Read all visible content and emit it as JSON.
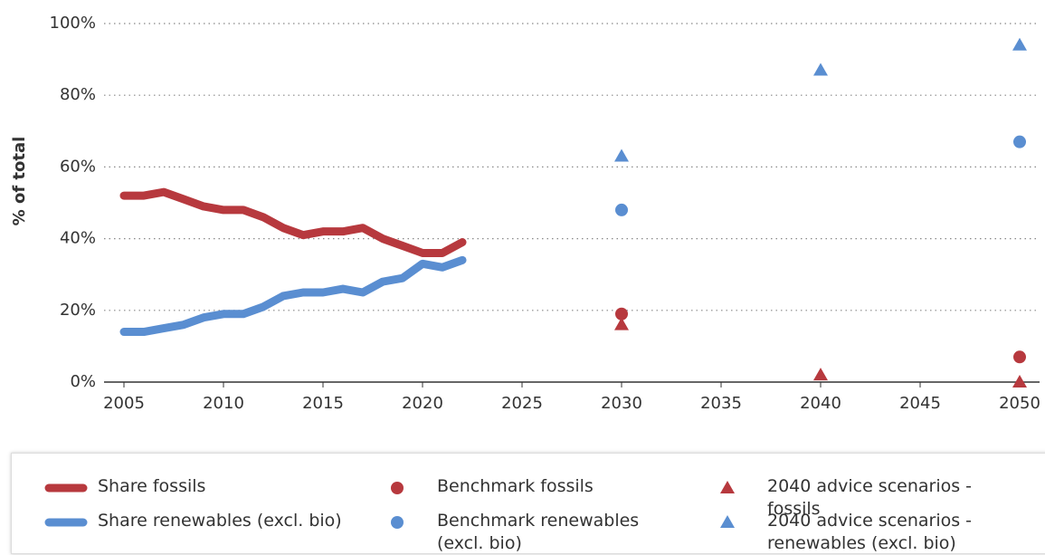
{
  "chart_data": {
    "type": "line",
    "y_label": "% of total",
    "xlim": [
      2004,
      2051
    ],
    "xticks": [
      2005,
      2010,
      2015,
      2020,
      2025,
      2030,
      2035,
      2040,
      2045,
      2050
    ],
    "ylim": [
      0,
      100
    ],
    "yticks": [
      {
        "value": 0,
        "label": "0%"
      },
      {
        "value": 20,
        "label": "20%"
      },
      {
        "value": 40,
        "label": "40%"
      },
      {
        "value": 60,
        "label": "60%"
      },
      {
        "value": 80,
        "label": "80%"
      },
      {
        "value": 100,
        "label": "100%"
      }
    ],
    "grid": true,
    "series": [
      {
        "name": "Share fossils",
        "type": "line",
        "marker": "line",
        "color": "#b7393e",
        "x": [
          2005,
          2006,
          2007,
          2008,
          2009,
          2010,
          2011,
          2012,
          2013,
          2014,
          2015,
          2016,
          2017,
          2018,
          2019,
          2020,
          2021,
          2022
        ],
        "values": [
          52,
          52,
          53,
          51,
          49,
          48,
          48,
          46,
          43,
          41,
          42,
          42,
          43,
          40,
          38,
          36,
          36,
          39
        ]
      },
      {
        "name": "Share renewables (excl. bio)",
        "type": "line",
        "marker": "line",
        "color": "#5a8ed1",
        "x": [
          2005,
          2006,
          2007,
          2008,
          2009,
          2010,
          2011,
          2012,
          2013,
          2014,
          2015,
          2016,
          2017,
          2018,
          2019,
          2020,
          2021,
          2022
        ],
        "values": [
          14,
          14,
          15,
          16,
          18,
          19,
          19,
          21,
          24,
          25,
          25,
          26,
          25,
          28,
          29,
          33,
          32,
          34
        ]
      },
      {
        "name": "Benchmark fossils",
        "type": "scatter",
        "marker": "circle",
        "color": "#b7393e",
        "x": [
          2030,
          2050
        ],
        "values": [
          19,
          7
        ]
      },
      {
        "name": "Benchmark renewables (excl. bio)",
        "type": "scatter",
        "marker": "circle",
        "color": "#5a8ed1",
        "x": [
          2030,
          2050
        ],
        "values": [
          48,
          67
        ]
      },
      {
        "name": "2040 advice scenarios - fossils",
        "type": "scatter",
        "marker": "triangle",
        "color": "#b7393e",
        "x": [
          2030,
          2040,
          2050
        ],
        "values": [
          16,
          2,
          0
        ]
      },
      {
        "name": "2040 advice scenarios - renewables (excl. bio)",
        "type": "scatter",
        "marker": "triangle",
        "color": "#5a8ed1",
        "x": [
          2030,
          2040,
          2050
        ],
        "values": [
          63,
          87,
          94
        ]
      }
    ]
  }
}
